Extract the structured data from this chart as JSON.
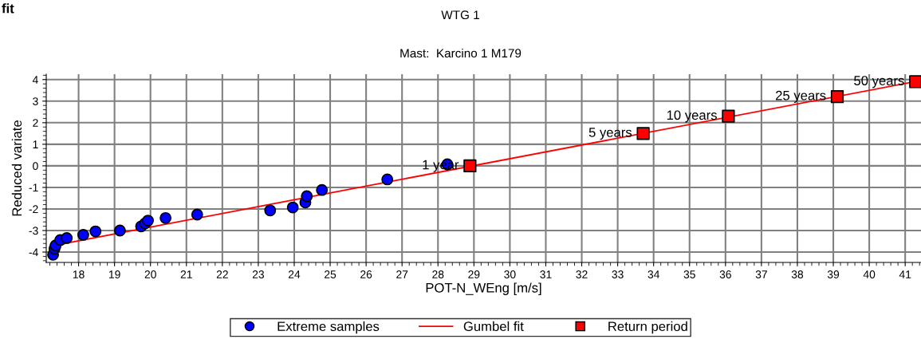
{
  "chart_data": {
    "type": "scatter",
    "title": "WTG 1",
    "subtitle": "Mast:  Karcino 1 M179",
    "xlabel": "POT-N_WEng [m/s]",
    "ylabel": "Reduced variate",
    "annotations": [
      "fit",
      {
        "text": "1 year",
        "x": 28.89,
        "y": 0
      },
      {
        "text": "5 years",
        "x": 33.71,
        "y": 1.5
      },
      {
        "text": "10 years",
        "x": 36.08,
        "y": 2.3
      },
      {
        "text": "25 years",
        "x": 39.11,
        "y": 3.21
      },
      {
        "text": "50 years",
        "x": 41.29,
        "y": 3.9
      }
    ],
    "series": [
      {
        "name": "Extreme samples",
        "marker": "circle",
        "color": "#0000ff",
        "x": [
          17.29,
          17.33,
          17.36,
          17.49,
          17.67,
          18.13,
          18.47,
          19.15,
          19.74,
          19.85,
          19.93,
          20.42,
          21.3,
          23.33,
          23.96,
          24.31,
          24.35,
          24.77,
          26.59,
          28.26
        ],
        "values": [
          -4.12,
          -3.84,
          -3.69,
          -3.44,
          -3.35,
          -3.2,
          -3.04,
          -3.0,
          -2.81,
          -2.67,
          -2.54,
          -2.42,
          -2.26,
          -2.07,
          -1.93,
          -1.7,
          -1.41,
          -1.12,
          -0.63,
          0.07
        ]
      },
      {
        "name": "Gumbel fit",
        "type": "line",
        "marker": "none",
        "color": "#ff0000",
        "x": [
          17.3,
          41.44
        ],
        "values": [
          -3.7,
          3.96
        ]
      },
      {
        "name": "Return period",
        "type": "scatter",
        "marker": "square",
        "color": "#ff0000",
        "x": [
          28.89,
          33.71,
          36.08,
          39.11,
          41.29
        ],
        "values": [
          0,
          1.5,
          2.3,
          3.21,
          3.9
        ]
      }
    ],
    "xlim": [
      17.1,
      41.44
    ],
    "ylim": [
      -4.48,
      4.25
    ],
    "xticks": [
      18,
      19,
      20,
      21,
      22,
      23,
      24,
      25,
      26,
      27,
      28,
      29,
      30,
      31,
      32,
      33,
      34,
      35,
      36,
      37,
      38,
      39,
      40,
      41
    ],
    "yticks": [
      -4,
      -3,
      -2,
      -1,
      0,
      1,
      2,
      3,
      4
    ],
    "grid": true,
    "legend": "bottom"
  }
}
